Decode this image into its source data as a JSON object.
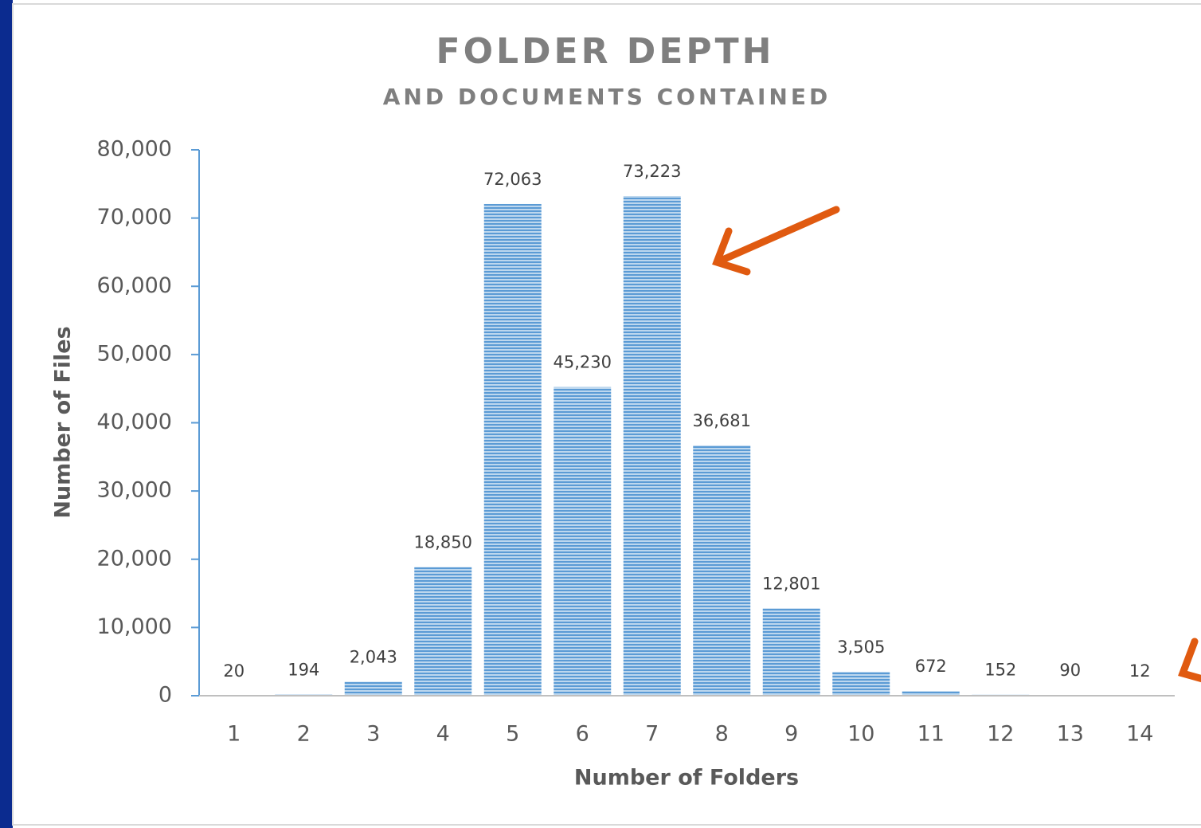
{
  "chart_data": {
    "type": "bar",
    "title": "FOLDER DEPTH",
    "subtitle": "AND DOCUMENTS CONTAINED",
    "x_label": "Number of Folders",
    "y_label": "Number of Files",
    "categories": [
      "1",
      "2",
      "3",
      "4",
      "5",
      "6",
      "7",
      "8",
      "9",
      "10",
      "11",
      "12",
      "13",
      "14"
    ],
    "values": [
      20,
      194,
      2043,
      18850,
      72063,
      45230,
      73223,
      36681,
      12801,
      3505,
      672,
      152,
      90,
      12
    ],
    "value_labels": [
      "20",
      "194",
      "2,043",
      "18,850",
      "72,063",
      "45,230",
      "73,223",
      "36,681",
      "12,801",
      "3,505",
      "672",
      "152",
      "90",
      "12"
    ],
    "color": "#5b9bd5",
    "ylim": [
      0,
      80000
    ],
    "yticks": [
      0,
      {
        "value": 10000,
        "label": "10,000"
      },
      {
        "value": 20000,
        "label": "20,000"
      },
      {
        "value": 30000,
        "label": "30,000"
      },
      {
        "value": 40000,
        "label": "40,000"
      },
      {
        "value": 50000,
        "label": "50,000"
      },
      {
        "value": 60000,
        "label": "60,000"
      },
      {
        "value": 70000,
        "label": "70,000"
      },
      {
        "value": 80000,
        "label": "80,000"
      }
    ],
    "grid": false
  }
}
